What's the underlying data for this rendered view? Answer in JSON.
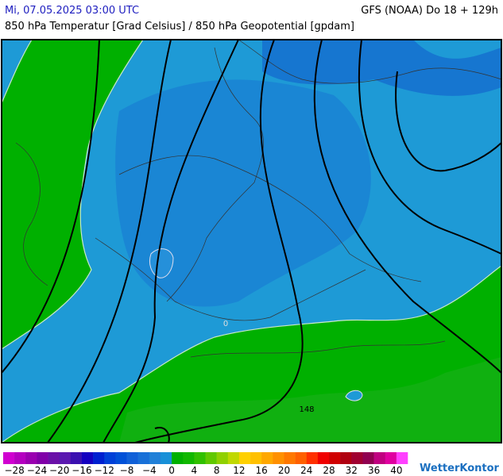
{
  "header": {
    "datetime": "Mi, 07.05.2025 03:00 UTC",
    "model": "GFS (NOAA) Do 18 + 129h",
    "subtitle": "850 hPa Temperatur [Grad Celsius] / 850 hPa Geopotential [gpdam]"
  },
  "map": {
    "contour_labels": [
      "148",
      "0"
    ]
  },
  "legend": {
    "colors": [
      "#d000d0",
      "#b400c0",
      "#9a00b0",
      "#8000a8",
      "#6a10a8",
      "#5a18b0",
      "#3a10b0",
      "#1400c0",
      "#0020d0",
      "#0040d8",
      "#0050d8",
      "#1060d8",
      "#1870d8",
      "#2080d8",
      "#1890d8",
      "#00b000",
      "#10b800",
      "#30c000",
      "#60c800",
      "#90d000",
      "#c0d800",
      "#ffd000",
      "#ffc000",
      "#ffa800",
      "#ff9000",
      "#ff7800",
      "#ff6000",
      "#ff3000",
      "#f00000",
      "#d00000",
      "#b00010",
      "#a00030",
      "#900050",
      "#c00080",
      "#e000a0",
      "#ff40ff"
    ],
    "labels": [
      "−28",
      "−24",
      "−20",
      "−16",
      "−12",
      "−8",
      "−4",
      "0",
      "4",
      "8",
      "12",
      "16",
      "20",
      "24",
      "28",
      "32",
      "36",
      "40"
    ]
  },
  "logo": "WetterKontor"
}
